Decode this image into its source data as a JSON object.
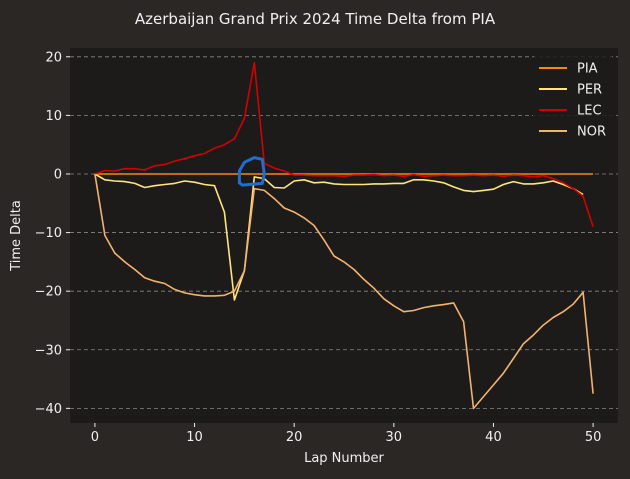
{
  "chart_data": {
    "type": "line",
    "title": "Azerbaijan Grand Prix 2024 Time Delta from PIA",
    "xlabel": "Lap Number",
    "ylabel": "Time Delta",
    "xlim": [
      -2.5,
      52.5
    ],
    "ylim": [
      -42.5,
      21.5
    ],
    "x_ticks": [
      0,
      10,
      20,
      30,
      40,
      50
    ],
    "y_ticks": [
      20,
      10,
      0,
      -10,
      -20,
      -30,
      -40
    ],
    "grid": {
      "y": true,
      "x": false,
      "style": "dashed"
    },
    "legend_position": "top-right",
    "colors": {
      "figure_bg": "#2b2725",
      "plot_bg": "#1c1b1a",
      "text": "#f0f0f0",
      "grid": "#8a8784",
      "annotation": "#1e6fd0"
    },
    "series": [
      {
        "name": "PIA",
        "color": "#ff8700",
        "x": [
          0,
          50
        ],
        "y": [
          0,
          0
        ]
      },
      {
        "name": "PER",
        "color": "#ffe57a",
        "x": [
          0,
          1,
          2,
          3,
          4,
          5,
          6,
          7,
          8,
          9,
          10,
          11,
          12,
          13,
          14,
          15,
          16,
          17,
          18,
          19,
          20,
          21,
          22,
          23,
          24,
          25,
          26,
          27,
          28,
          29,
          30,
          31,
          32,
          33,
          34,
          35,
          36,
          37,
          38,
          39,
          40,
          41,
          42,
          43,
          44,
          45,
          46,
          47,
          48,
          49
        ],
        "y": [
          0,
          -1.0,
          -1.2,
          -1.3,
          -1.6,
          -2.3,
          -2.0,
          -1.8,
          -1.6,
          -1.2,
          -1.4,
          -1.8,
          -2.0,
          -6.5,
          -21.5,
          -16.5,
          -0.5,
          -0.8,
          -2.3,
          -2.4,
          -1.2,
          -1.0,
          -1.5,
          -1.4,
          -1.7,
          -1.8,
          -1.8,
          -1.8,
          -1.7,
          -1.7,
          -1.6,
          -1.6,
          -1.0,
          -1.0,
          -1.2,
          -1.5,
          -2.2,
          -2.8,
          -3.0,
          -2.8,
          -2.6,
          -1.8,
          -1.3,
          -1.7,
          -1.7,
          -1.5,
          -1.2,
          -1.8,
          -2.5,
          -3.5
        ]
      },
      {
        "name": "LEC",
        "color": "#d40000",
        "x": [
          0,
          1,
          2,
          3,
          4,
          5,
          6,
          7,
          8,
          9,
          10,
          11,
          12,
          13,
          14,
          15,
          16,
          17,
          18,
          19,
          20,
          21,
          22,
          23,
          24,
          25,
          26,
          27,
          28,
          29,
          30,
          31,
          32,
          33,
          34,
          35,
          36,
          37,
          38,
          39,
          40,
          41,
          42,
          43,
          44,
          45,
          46,
          47,
          48,
          49,
          50
        ],
        "y": [
          0,
          0.6,
          0.5,
          0.9,
          0.9,
          0.7,
          1.4,
          1.6,
          2.2,
          2.6,
          3.1,
          3.5,
          4.4,
          5.0,
          6.0,
          9.5,
          19.0,
          1.8,
          1.0,
          0.5,
          -0.2,
          -0.2,
          -0.3,
          -0.3,
          -0.3,
          -0.4,
          -0.2,
          -0.2,
          -0.1,
          -0.3,
          -0.2,
          -0.4,
          -0.1,
          -0.4,
          -0.3,
          -0.2,
          -0.3,
          -0.3,
          -0.2,
          -0.3,
          -0.2,
          -0.4,
          -0.2,
          -0.3,
          -0.5,
          -0.3,
          -0.8,
          -1.5,
          -2.5,
          -3.8,
          -9.0
        ]
      },
      {
        "name": "NOR",
        "color": "#f2b36e",
        "x": [
          0,
          1,
          2,
          3,
          4,
          5,
          6,
          7,
          8,
          9,
          10,
          11,
          12,
          13,
          14,
          15,
          16,
          17,
          18,
          19,
          20,
          21,
          22,
          23,
          24,
          25,
          26,
          27,
          28,
          29,
          30,
          31,
          32,
          33,
          34,
          35,
          36,
          37,
          38,
          39,
          40,
          41,
          42,
          43,
          44,
          45,
          46,
          47,
          48,
          49,
          50
        ],
        "y": [
          0,
          -10.5,
          -13.5,
          -15.0,
          -16.3,
          -17.7,
          -18.3,
          -18.7,
          -19.7,
          -20.3,
          -20.6,
          -20.8,
          -20.8,
          -20.7,
          -20.0,
          -16.5,
          -2.5,
          -2.8,
          -4.2,
          -5.8,
          -6.5,
          -7.5,
          -8.8,
          -11.3,
          -14.0,
          -15.0,
          -16.3,
          -18.0,
          -19.5,
          -21.3,
          -22.5,
          -23.5,
          -23.3,
          -22.8,
          -22.5,
          -22.3,
          -22.0,
          -25.2,
          -40.0,
          -38.0,
          -36.0,
          -34.0,
          -31.5,
          -29.0,
          -27.5,
          -25.8,
          -24.5,
          -23.5,
          -22.2,
          -20.2,
          -37.5
        ]
      }
    ],
    "annotation_shape": {
      "x": [
        14.5,
        14.5,
        15.0,
        16.0,
        16.8,
        17.0,
        16.8,
        15.5,
        14.8,
        14.5
      ],
      "y": [
        -1.5,
        0.5,
        2.0,
        2.8,
        2.5,
        0.0,
        -1.6,
        -1.8,
        -1.9,
        -1.5
      ]
    }
  }
}
